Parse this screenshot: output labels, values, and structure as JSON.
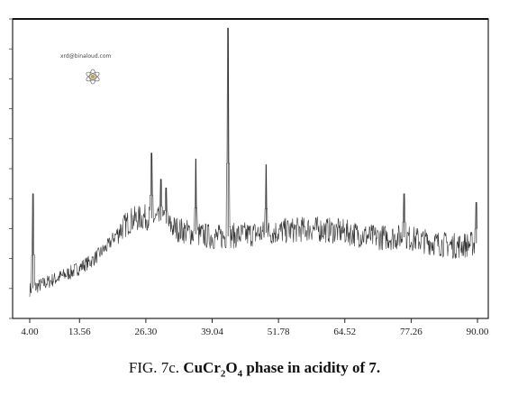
{
  "chart_data": {
    "type": "line",
    "xlabel": "",
    "ylabel": "",
    "xlim": [
      4.0,
      90.0
    ],
    "ylim": [
      0,
      100
    ],
    "x_tick_labels": [
      "4.00",
      "13.56",
      "26.30",
      "39.04",
      "51.78",
      "64.52",
      "77.26",
      "90.00"
    ],
    "x_ticks": [
      4.0,
      13.56,
      26.3,
      39.04,
      51.78,
      64.52,
      77.26,
      90.0
    ],
    "peaks": [
      {
        "x": 4.6,
        "y": 42
      },
      {
        "x": 27.4,
        "y": 56
      },
      {
        "x": 29.2,
        "y": 47
      },
      {
        "x": 30.2,
        "y": 44
      },
      {
        "x": 35.9,
        "y": 54
      },
      {
        "x": 42.1,
        "y": 99
      },
      {
        "x": 49.4,
        "y": 52
      },
      {
        "x": 75.9,
        "y": 42
      },
      {
        "x": 89.8,
        "y": 39
      }
    ],
    "baseline": [
      {
        "x": 4.0,
        "y": 9
      },
      {
        "x": 8.0,
        "y": 12
      },
      {
        "x": 12.0,
        "y": 15
      },
      {
        "x": 16.0,
        "y": 19
      },
      {
        "x": 19.0,
        "y": 24
      },
      {
        "x": 21.0,
        "y": 29
      },
      {
        "x": 23.5,
        "y": 33
      },
      {
        "x": 26.3,
        "y": 34
      },
      {
        "x": 29.0,
        "y": 33
      },
      {
        "x": 32.0,
        "y": 30
      },
      {
        "x": 36.0,
        "y": 28
      },
      {
        "x": 40.0,
        "y": 27
      },
      {
        "x": 46.0,
        "y": 28
      },
      {
        "x": 52.0,
        "y": 29
      },
      {
        "x": 58.0,
        "y": 30
      },
      {
        "x": 64.0,
        "y": 29
      },
      {
        "x": 70.0,
        "y": 27
      },
      {
        "x": 76.0,
        "y": 27
      },
      {
        "x": 82.0,
        "y": 25
      },
      {
        "x": 86.0,
        "y": 24
      },
      {
        "x": 90.0,
        "y": 25
      }
    ]
  },
  "watermark": {
    "text": "xrd@binaloud.com",
    "icon": "atom-logo-icon"
  },
  "caption": {
    "prefix": "FIG. 7c.",
    "compound": "CuCr",
    "sub1": "2",
    "o": "O",
    "sub2": "4",
    "rest": "phase in acidity of 7."
  }
}
